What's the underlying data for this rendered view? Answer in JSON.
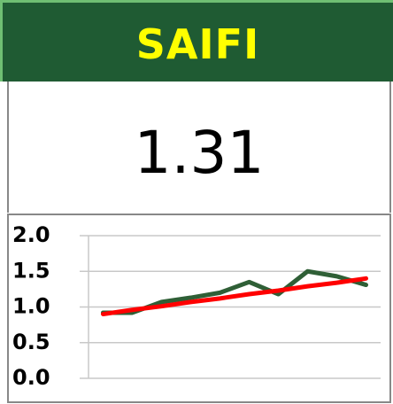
{
  "header": {
    "title": "SAIFI"
  },
  "kpi": {
    "value": "1.31"
  },
  "chart_data": {
    "type": "line",
    "categories": [
      null,
      null,
      null,
      null,
      null,
      null,
      null,
      null,
      null,
      null
    ],
    "series": [
      {
        "color": "#2f5f36",
        "values": [
          0.92,
          0.92,
          1.07,
          1.13,
          1.2,
          1.35,
          1.18,
          1.5,
          1.43,
          1.31
        ]
      },
      {
        "color": "#ff0000",
        "values": [
          0.9,
          0.96,
          1.01,
          1.07,
          1.12,
          1.18,
          1.23,
          1.29,
          1.34,
          1.4
        ]
      }
    ],
    "ylim": [
      0,
      2
    ],
    "yticks": [
      {
        "value": 0,
        "label": "0.0"
      },
      0.5,
      {
        "value": 1,
        "label": "1.0"
      },
      1.5,
      {
        "value": 2,
        "label": "2.0"
      }
    ],
    "grid": true
  }
}
